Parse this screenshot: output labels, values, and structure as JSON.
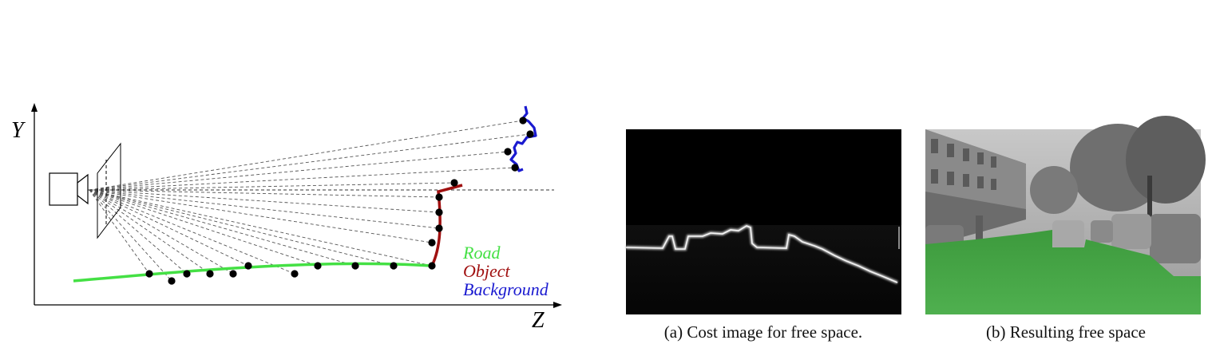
{
  "diagram": {
    "axes": {
      "y_label": "Y",
      "z_label": "Z"
    },
    "legend": [
      {
        "label": "Road",
        "color": "#44e044"
      },
      {
        "label": "Object",
        "color": "#a01010"
      },
      {
        "label": "Background",
        "color": "#1a1ad0"
      }
    ],
    "colors": {
      "road": "#44e044",
      "object": "#a01010",
      "background": "#1a1ad0",
      "rays": "#555555",
      "points": "#000000"
    }
  },
  "panels": [
    {
      "caption": "(a) Cost image for free space."
    },
    {
      "caption": "(b) Resulting free space"
    }
  ]
}
